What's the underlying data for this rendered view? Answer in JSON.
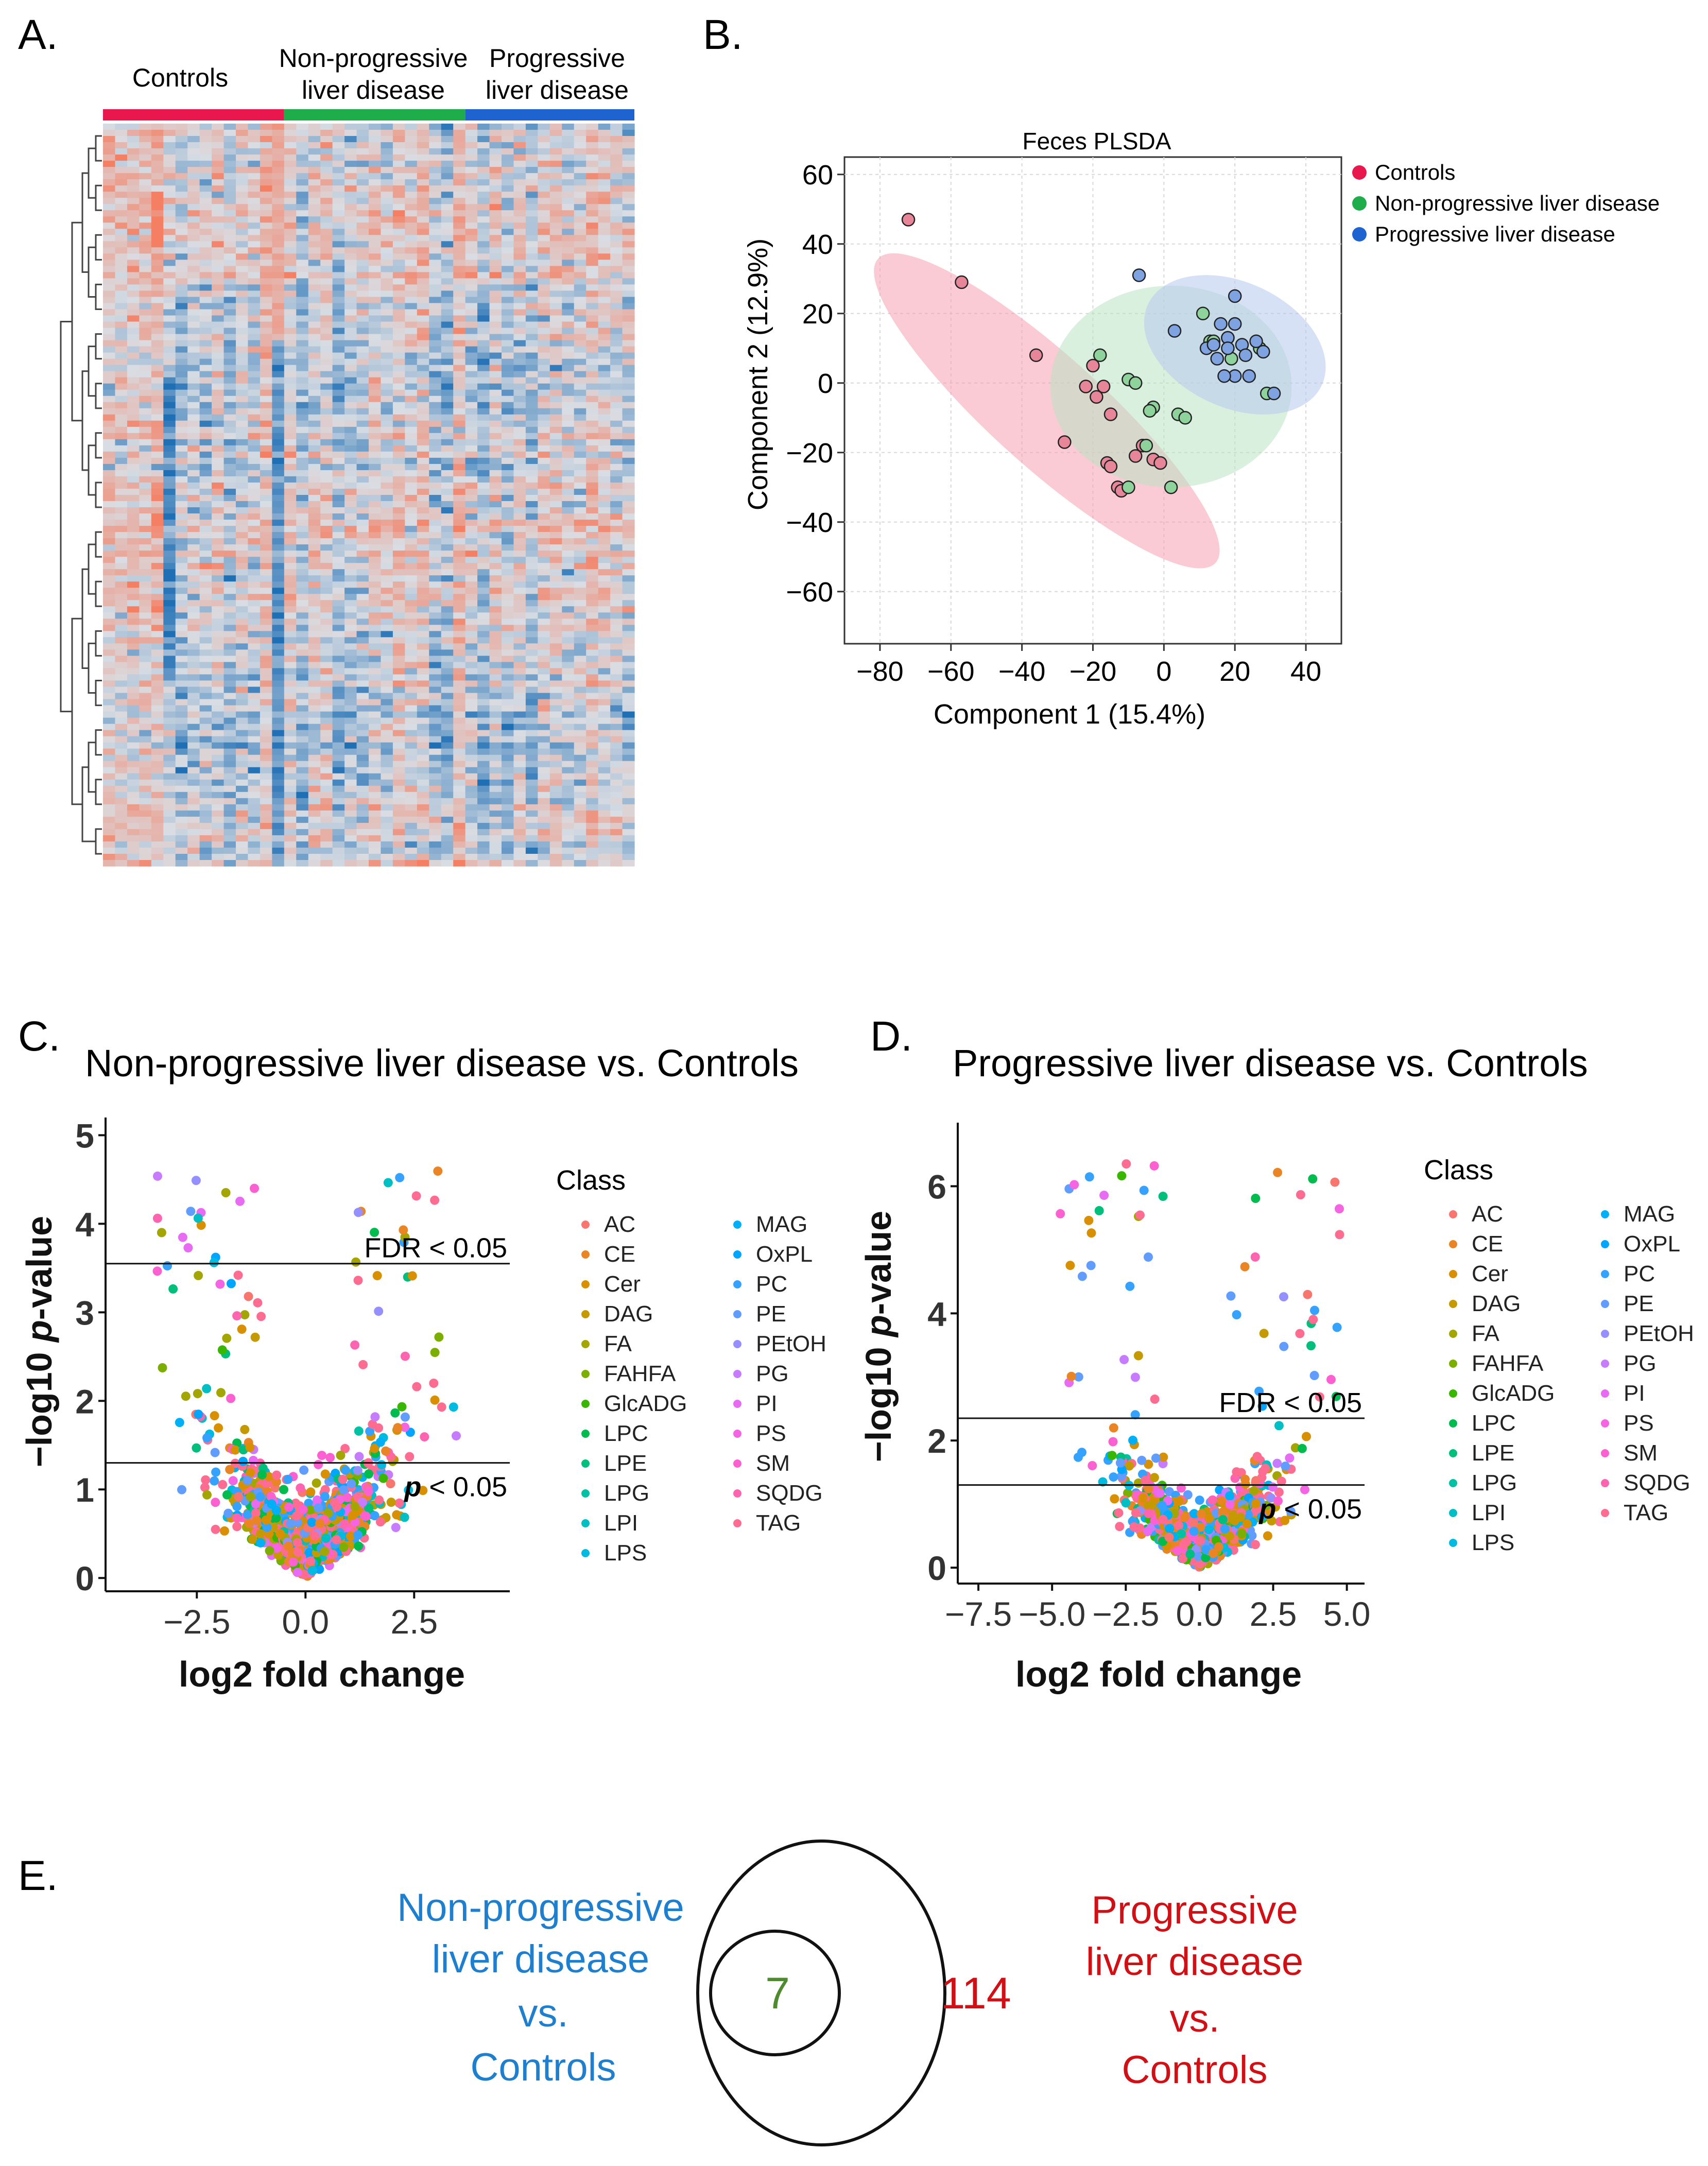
{
  "panels": {
    "a": "A.",
    "b": "B.",
    "c": "C.",
    "d": "D.",
    "e": "E."
  },
  "colors": {
    "controls": "#e8174d",
    "nonprogressive": "#1fad4b",
    "progressive": "#1f63d0",
    "venn_left_text": "#1f7fcf",
    "venn_right_text": "#d01015",
    "venn_seven": "#4e8a2e"
  },
  "chart_data": [
    {
      "type": "heatmap",
      "panel": "A",
      "column_groups": [
        {
          "label_line1": "Controls",
          "label_line2": "",
          "color": "#e8174d",
          "n_columns": 15
        },
        {
          "label_line1": "Non-progressive",
          "label_line2": "liver disease",
          "color": "#1fad4b",
          "n_columns": 15
        },
        {
          "label_line1": "Progressive",
          "label_line2": "liver disease",
          "color": "#1f63d0",
          "n_columns": 14
        }
      ],
      "n_rows": 120,
      "color_scale": {
        "low": "#1f6fb5",
        "mid": "#d9dde3",
        "high": "#f47f63"
      },
      "dendrogram": "rows",
      "grid": false
    },
    {
      "type": "scatter",
      "panel": "B",
      "title": "Feces PLSDA",
      "xlabel": "Component 1 (15.4%)",
      "ylabel": "Component 2 (12.9%)",
      "xlim": [
        -90,
        50
      ],
      "ylim": [
        -75,
        65
      ],
      "xticks": [
        -80,
        -60,
        -40,
        -20,
        0,
        20,
        40
      ],
      "yticks": [
        -60,
        -40,
        -20,
        0,
        20,
        40,
        60
      ],
      "xtick_labels": [
        "−80",
        "−60",
        "−40",
        "−20",
        "0",
        "20",
        "40"
      ],
      "ytick_labels": [
        "−60",
        "−40",
        "−20",
        "0",
        "20",
        "40",
        "60"
      ],
      "grid": true,
      "legend_position": "right",
      "legend": [
        {
          "label": "Controls",
          "color": "#e8174d"
        },
        {
          "label": "Non-progressive liver disease",
          "color": "#1fad4b"
        },
        {
          "label": "Progressive liver disease",
          "color": "#1f63d0"
        }
      ],
      "ellipses": [
        {
          "group": "Controls",
          "cx": -33,
          "cy": -8,
          "rx": 64,
          "ry": 16,
          "angle_deg": -42,
          "fill": "#f5a0b0"
        },
        {
          "group": "Non-progressive liver disease",
          "cx": 2,
          "cy": -1,
          "rx": 34,
          "ry": 29,
          "angle_deg": 0,
          "fill": "#b9e3c3"
        },
        {
          "group": "Progressive liver disease",
          "cx": 20,
          "cy": 11,
          "rx": 27,
          "ry": 18,
          "angle_deg": -25,
          "fill": "#b7c9ef"
        }
      ],
      "series": [
        {
          "name": "Controls",
          "color": "#e8174d",
          "fill": "#e88699",
          "points": [
            [
              -72,
              47
            ],
            [
              -57,
              29
            ],
            [
              -36,
              8
            ],
            [
              -28,
              -17
            ],
            [
              -22,
              -1
            ],
            [
              -17,
              -1
            ],
            [
              -15,
              -9
            ],
            [
              -19,
              -4
            ],
            [
              -16,
              -23
            ],
            [
              -13,
              -30
            ],
            [
              -12,
              -31
            ],
            [
              -8,
              -21
            ],
            [
              -6,
              -18
            ],
            [
              -3,
              -22
            ],
            [
              -1,
              -23
            ],
            [
              -20,
              5
            ],
            [
              -15,
              -24
            ]
          ]
        },
        {
          "name": "Non-progressive liver disease",
          "color": "#1fad4b",
          "fill": "#8fd39c",
          "points": [
            [
              -18,
              8
            ],
            [
              -10,
              1
            ],
            [
              -8,
              0
            ],
            [
              -3,
              -7
            ],
            [
              -4,
              -8
            ],
            [
              4,
              -9
            ],
            [
              6,
              -10
            ],
            [
              -5,
              -18
            ],
            [
              -10,
              -30
            ],
            [
              2,
              -30
            ],
            [
              11,
              20
            ],
            [
              13,
              12
            ],
            [
              14,
              12
            ],
            [
              18,
              13
            ],
            [
              19,
              7
            ],
            [
              27,
              10
            ],
            [
              29,
              -3
            ]
          ]
        },
        {
          "name": "Progressive liver disease",
          "color": "#1f63d0",
          "fill": "#7fa3e0",
          "points": [
            [
              -7,
              31
            ],
            [
              3,
              15
            ],
            [
              12,
              10
            ],
            [
              16,
              17
            ],
            [
              18,
              13
            ],
            [
              18,
              10
            ],
            [
              20,
              25
            ],
            [
              20,
              17
            ],
            [
              22,
              11
            ],
            [
              23,
              8
            ],
            [
              26,
              12
            ],
            [
              28,
              9
            ],
            [
              31,
              -3
            ],
            [
              20,
              2
            ],
            [
              24,
              2
            ],
            [
              17,
              2
            ],
            [
              15,
              7
            ],
            [
              14,
              11
            ]
          ]
        }
      ]
    },
    {
      "type": "scatter",
      "panel": "C",
      "title": "Non-progressive liver disease vs. Controls",
      "xlabel": "log2 fold change",
      "ylabel": "−log10 p-value",
      "ylabel_prefix": "−log10 ",
      "ylabel_italic": "p",
      "ylabel_suffix": "-value",
      "xlim": [
        -4.6,
        4.7
      ],
      "ylim": [
        -0.15,
        5.2
      ],
      "xticks": [
        -2.5,
        0,
        2.5
      ],
      "yticks": [
        0,
        1,
        2,
        3,
        4,
        5
      ],
      "xtick_labels": [
        "−2.5",
        "0.0",
        "2.5"
      ],
      "ytick_labels": [
        "0",
        "1",
        "2",
        "3",
        "4",
        "5"
      ],
      "hlines": [
        {
          "y": 3.55,
          "label": "FDR < 0.05",
          "italic_p": false
        },
        {
          "y": 1.3,
          "label": " < 0.05",
          "italic_p": true
        }
      ],
      "n_points": 1100,
      "seed": 17,
      "grid": false,
      "legend_position": "right"
    },
    {
      "type": "scatter",
      "panel": "D",
      "title": "Progressive liver disease vs. Controls",
      "xlabel": "log2 fold change",
      "ylabel": "−log10 p-value",
      "ylabel_prefix": "−log10 ",
      "ylabel_italic": "p",
      "ylabel_suffix": "-value",
      "xlim": [
        -8.2,
        5.6
      ],
      "ylim": [
        -0.25,
        7.0
      ],
      "xticks": [
        -7.5,
        -5.0,
        -2.5,
        0.0,
        2.5,
        5.0
      ],
      "yticks": [
        0,
        2,
        4,
        6
      ],
      "xtick_labels": [
        "−7.5",
        "−5.0",
        "−2.5",
        "0.0",
        "2.5",
        "5.0"
      ],
      "ytick_labels": [
        "0",
        "2",
        "4",
        "6"
      ],
      "hlines": [
        {
          "y": 2.35,
          "label": "FDR < 0.05",
          "italic_p": false
        },
        {
          "y": 1.3,
          "label": " < 0.05",
          "italic_p": true
        }
      ],
      "n_points": 1100,
      "seed": 29,
      "grid": false,
      "legend_position": "right"
    }
  ],
  "volcano_legend": {
    "title": "Class",
    "col1": [
      {
        "label": "AC",
        "color": "#f8766d"
      },
      {
        "label": "CE",
        "color": "#e98525"
      },
      {
        "label": "Cer",
        "color": "#d89000"
      },
      {
        "label": "DAG",
        "color": "#c49a00"
      },
      {
        "label": "FA",
        "color": "#a3a500"
      },
      {
        "label": "FAHFA",
        "color": "#7cae00"
      },
      {
        "label": "GlcADG",
        "color": "#39b600"
      },
      {
        "label": "LPC",
        "color": "#00bb4e"
      },
      {
        "label": "LPE",
        "color": "#00bf7d"
      },
      {
        "label": "LPG",
        "color": "#00c1a3"
      },
      {
        "label": "LPI",
        "color": "#00bfc4"
      },
      {
        "label": "LPS",
        "color": "#00bae0"
      }
    ],
    "col2": [
      {
        "label": "MAG",
        "color": "#00b0f6"
      },
      {
        "label": "OxPL",
        "color": "#00a5ff"
      },
      {
        "label": "PC",
        "color": "#35a2ff"
      },
      {
        "label": "PE",
        "color": "#619cff"
      },
      {
        "label": "PEtOH",
        "color": "#9590ff"
      },
      {
        "label": "PG",
        "color": "#c77cff"
      },
      {
        "label": "PI",
        "color": "#e76bf3"
      },
      {
        "label": "PS",
        "color": "#f564e3"
      },
      {
        "label": "SM",
        "color": "#fd61d1"
      },
      {
        "label": "SQDG",
        "color": "#ff64b0"
      },
      {
        "label": "TAG",
        "color": "#ff6c91"
      }
    ]
  },
  "venn": {
    "left_label": [
      "Non-progressive",
      "liver disease",
      "vs.",
      "Controls"
    ],
    "right_label": [
      "Progressive",
      "liver disease",
      "vs.",
      "Controls"
    ],
    "inner_count": "7",
    "outer_count": "114"
  }
}
